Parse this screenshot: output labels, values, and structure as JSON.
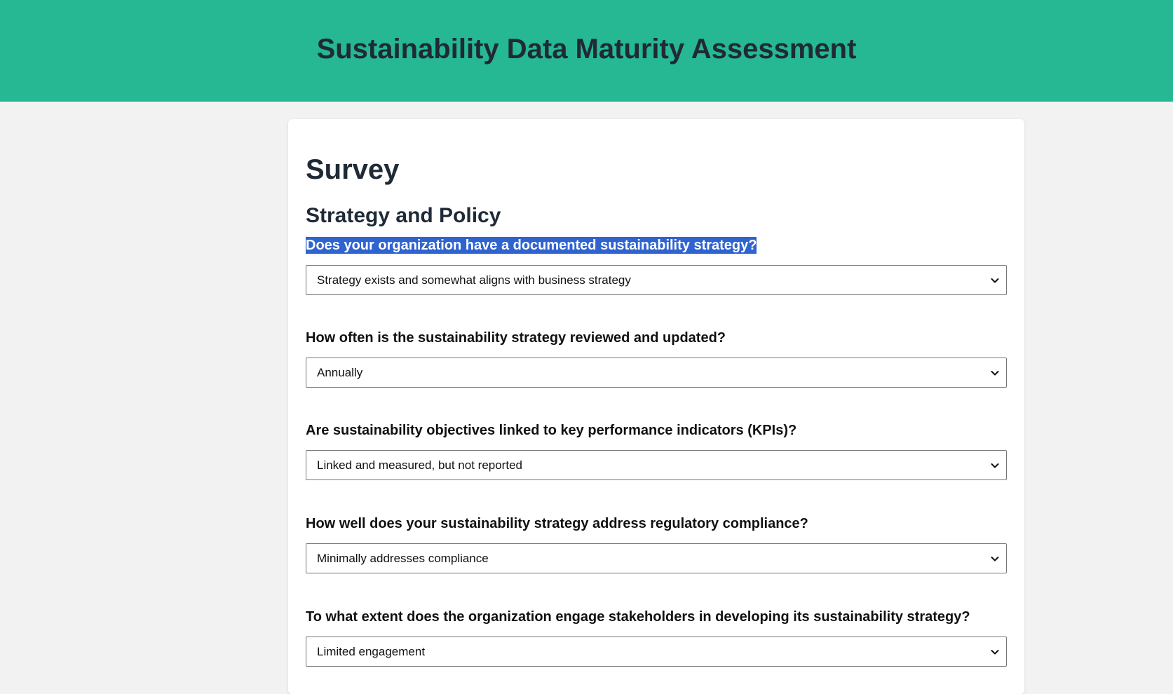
{
  "header": {
    "title": "Sustainability Data Maturity Assessment"
  },
  "main": {
    "title": "Survey",
    "section_title": "Strategy and Policy",
    "questions": [
      {
        "label": "Does your organization have a documented sustainability strategy?",
        "selected": "Strategy exists and somewhat aligns with business strategy",
        "label_highlighted": true
      },
      {
        "label": "How often is the sustainability strategy reviewed and updated?",
        "selected": "Annually"
      },
      {
        "label": "Are sustainability objectives linked to key performance indicators (KPIs)?",
        "selected": "Linked and measured, but not reported"
      },
      {
        "label": "How well does your sustainability strategy address regulatory compliance?",
        "selected": "Minimally addresses compliance"
      },
      {
        "label": "To what extent does the organization engage stakeholders in developing its sustainability strategy?",
        "selected": "Limited engagement"
      }
    ]
  },
  "colors": {
    "header_bg": "#26b793",
    "text_dark": "#1f2a36",
    "selection_highlight": "#2f63cf",
    "page_bg": "#f2f2f2"
  },
  "icons": {
    "dropdown": "chevron-down-icon"
  }
}
